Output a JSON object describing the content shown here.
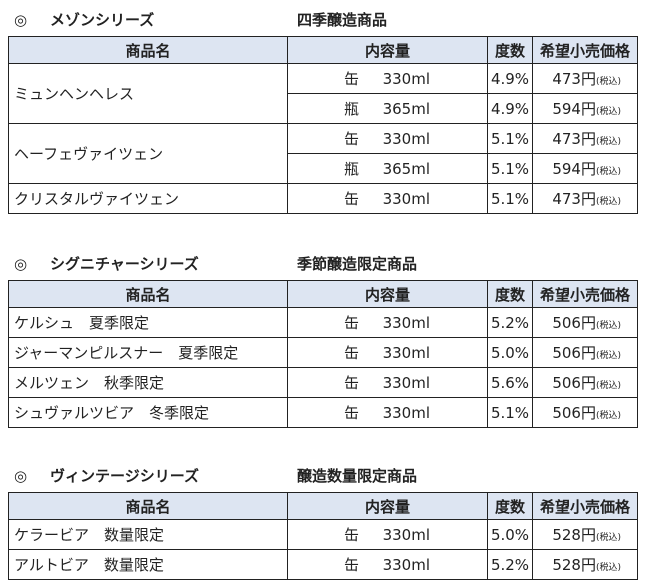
{
  "sections": [
    {
      "mark": "◎",
      "name": "メゾンシリーズ",
      "subtitle": "四季醸造商品",
      "headers": [
        "商品名",
        "内容量",
        "度数",
        "希望小売価格"
      ],
      "products": [
        {
          "name": "ミュンヘンヘレス",
          "variants": [
            {
              "container": "缶",
              "volume": "330ml",
              "abv": "4.9%",
              "price": "473円",
              "tax": "(税込)"
            },
            {
              "container": "瓶",
              "volume": "365ml",
              "abv": "4.9%",
              "price": "594円",
              "tax": "(税込)"
            }
          ]
        },
        {
          "name": "ヘーフェヴァイツェン",
          "variants": [
            {
              "container": "缶",
              "volume": "330ml",
              "abv": "5.1%",
              "price": "473円",
              "tax": "(税込)"
            },
            {
              "container": "瓶",
              "volume": "365ml",
              "abv": "5.1%",
              "price": "594円",
              "tax": "(税込)"
            }
          ]
        },
        {
          "name": "クリスタルヴァイツェン",
          "variants": [
            {
              "container": "缶",
              "volume": "330ml",
              "abv": "5.1%",
              "price": "473円",
              "tax": "(税込)"
            }
          ]
        }
      ]
    },
    {
      "mark": "◎",
      "name": "シグニチャーシリーズ",
      "subtitle": "季節醸造限定商品",
      "headers": [
        "商品名",
        "内容量",
        "度数",
        "希望小売価格"
      ],
      "products": [
        {
          "name": "ケルシュ　夏季限定",
          "variants": [
            {
              "container": "缶",
              "volume": "330ml",
              "abv": "5.2%",
              "price": "506円",
              "tax": "(税込)"
            }
          ]
        },
        {
          "name": "ジャーマンピルスナー　夏季限定",
          "variants": [
            {
              "container": "缶",
              "volume": "330ml",
              "abv": "5.0%",
              "price": "506円",
              "tax": "(税込)"
            }
          ]
        },
        {
          "name": "メルツェン　秋季限定",
          "variants": [
            {
              "container": "缶",
              "volume": "330ml",
              "abv": "5.6%",
              "price": "506円",
              "tax": "(税込)"
            }
          ]
        },
        {
          "name": "シュヴァルツビア　冬季限定",
          "variants": [
            {
              "container": "缶",
              "volume": "330ml",
              "abv": "5.1%",
              "price": "506円",
              "tax": "(税込)"
            }
          ]
        }
      ]
    },
    {
      "mark": "◎",
      "name": "ヴィンテージシリーズ",
      "subtitle": "醸造数量限定商品",
      "headers": [
        "商品名",
        "内容量",
        "度数",
        "希望小売価格"
      ],
      "products": [
        {
          "name": "ケラービア　数量限定",
          "variants": [
            {
              "container": "缶",
              "volume": "330ml",
              "abv": "5.0%",
              "price": "528円",
              "tax": "(税込)"
            }
          ]
        },
        {
          "name": "アルトビア　数量限定",
          "variants": [
            {
              "container": "缶",
              "volume": "330ml",
              "abv": "5.2%",
              "price": "528円",
              "tax": "(税込)"
            }
          ]
        }
      ]
    }
  ]
}
